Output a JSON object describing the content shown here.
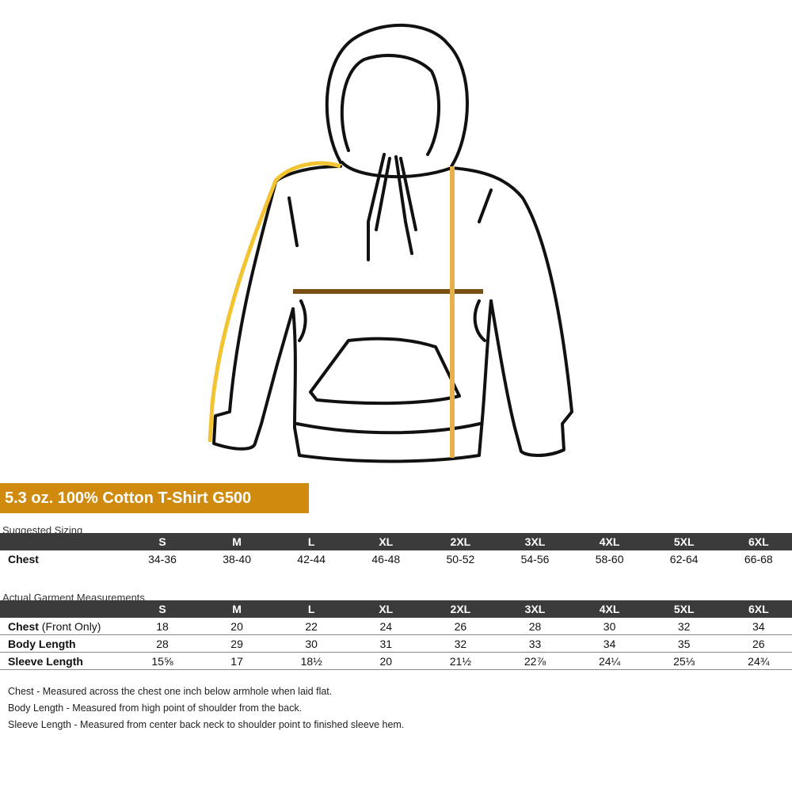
{
  "title": "5.3 oz. 100% Cotton T-Shirt G500",
  "suggested": {
    "caption": "Suggested Sizing",
    "header": [
      "S",
      "M",
      "L",
      "XL",
      "2XL",
      "3XL",
      "4XL",
      "5XL",
      "6XL"
    ],
    "rows": [
      {
        "label": "Chest",
        "cells": [
          "34-36",
          "38-40",
          "42-44",
          "46-48",
          "50-52",
          "54-56",
          "58-60",
          "62-64",
          "66-68"
        ]
      }
    ]
  },
  "actual": {
    "caption": "Actual Garment Measurements",
    "header": [
      "S",
      "M",
      "L",
      "XL",
      "2XL",
      "3XL",
      "4XL",
      "5XL",
      "6XL"
    ],
    "rows": [
      {
        "label": "Chest",
        "note": "(Front Only)",
        "cells": [
          "18",
          "20",
          "22",
          "24",
          "26",
          "28",
          "30",
          "32",
          "34"
        ]
      },
      {
        "label": "Body Length",
        "cells": [
          "28",
          "29",
          "30",
          "31",
          "32",
          "33",
          "34",
          "35",
          "26"
        ]
      },
      {
        "label": "Sleeve Length",
        "cells": [
          "15⅝",
          "17",
          "18½",
          "20",
          "21½",
          "22⅞",
          "24¼",
          "25⅓",
          "24¾"
        ]
      }
    ]
  },
  "notes": [
    "Chest - Measured across the chest one inch below armhole when laid flat.",
    "Body Length - Measured from high point of shoulder from the back.",
    "Sleeve Length - Measured from center back neck to shoulder point to finished sleeve hem."
  ]
}
